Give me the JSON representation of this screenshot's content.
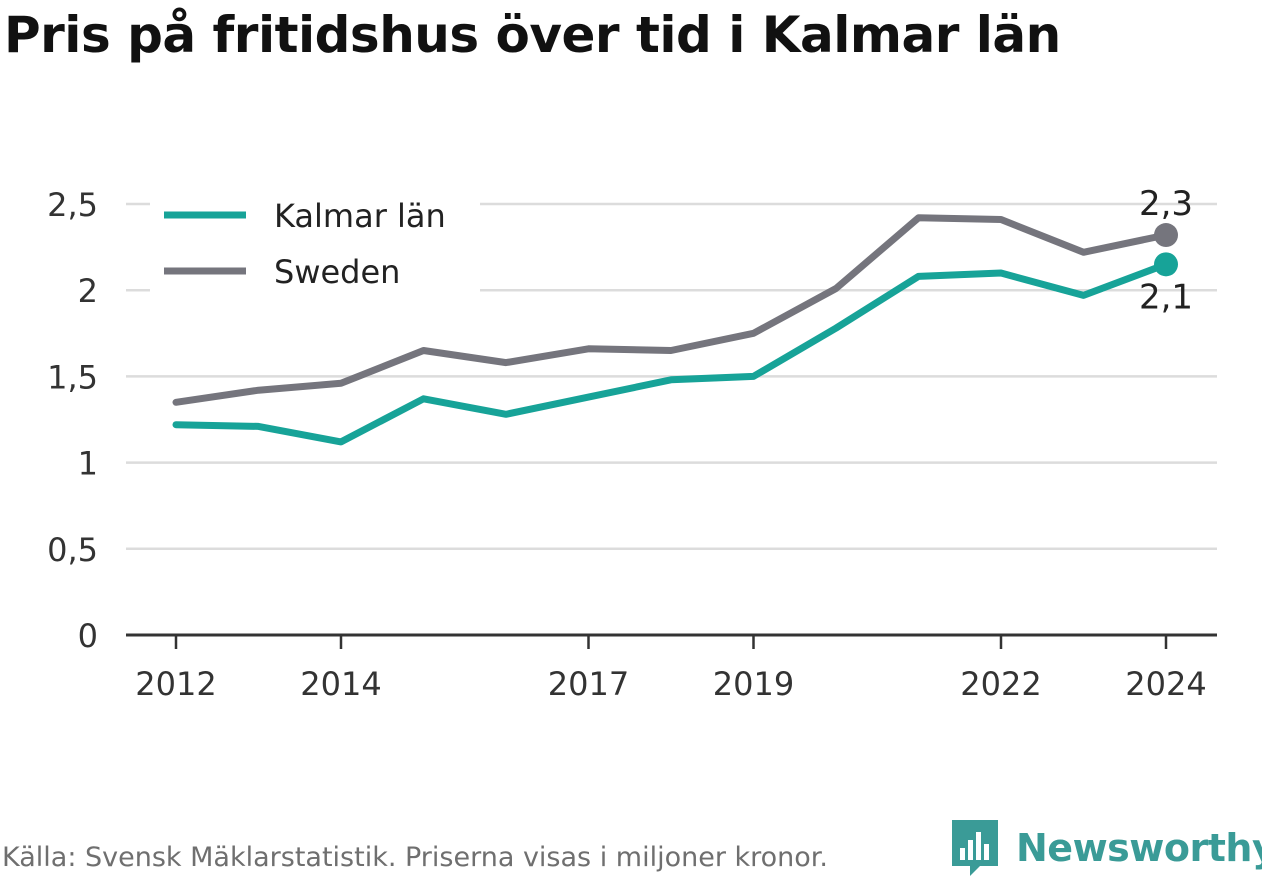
{
  "title": "Pris på fritidshus över tid i Kalmar län",
  "footer": {
    "source": "Källa: Svensk Mäklarstatistik. Priserna visas i miljoner kronor.",
    "brand": "Newsworthy"
  },
  "colors": {
    "kalmar": "#17a398",
    "sweden": "#75757d",
    "grid": "#dcdcdc",
    "axis": "#333333",
    "brand": "#3a9b97"
  },
  "chart_data": {
    "type": "line",
    "x": [
      2012,
      2013,
      2014,
      2015,
      2016,
      2017,
      2018,
      2019,
      2020,
      2021,
      2022,
      2023,
      2024
    ],
    "x_tick_labels": [
      "2012",
      "2014",
      "2017",
      "2019",
      "2022",
      "2024"
    ],
    "x_tick_values": [
      2012,
      2014,
      2017,
      2019,
      2022,
      2024
    ],
    "y_tick_labels": [
      "0",
      "0,5",
      "1",
      "1,5",
      "2",
      "2,5"
    ],
    "y_tick_values": [
      0,
      0.5,
      1,
      1.5,
      2,
      2.5
    ],
    "ylim": [
      0,
      2.5
    ],
    "xlim": [
      2011.4,
      2024.6
    ],
    "grid": true,
    "legend_position": "top-left",
    "series": [
      {
        "name": "Kalmar län",
        "values": [
          1.22,
          1.21,
          1.12,
          1.37,
          1.28,
          1.38,
          1.48,
          1.5,
          1.78,
          2.08,
          2.1,
          1.97,
          2.15
        ],
        "end_label": "2,1"
      },
      {
        "name": "Sweden",
        "values": [
          1.35,
          1.42,
          1.46,
          1.65,
          1.58,
          1.66,
          1.65,
          1.75,
          2.01,
          2.42,
          2.41,
          2.22,
          2.32
        ],
        "end_label": "2,3"
      }
    ]
  }
}
